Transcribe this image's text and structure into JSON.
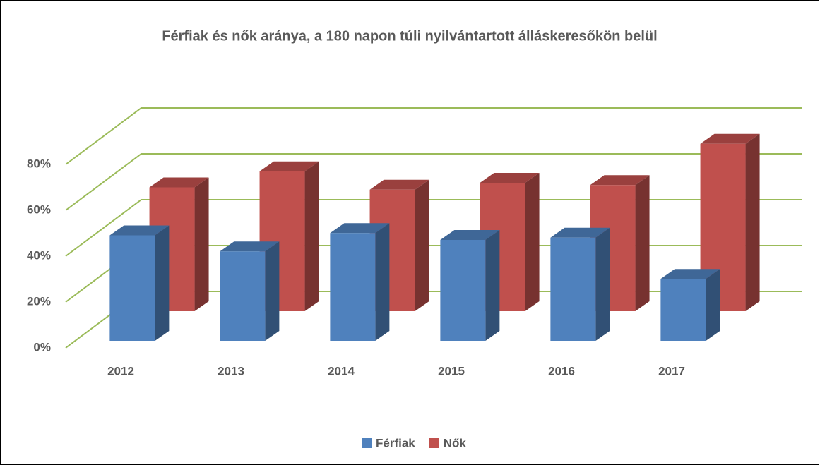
{
  "chart_data": {
    "type": "bar3d",
    "title": "Férfiak és nők aránya, a 180 napon túli nyilvántartott álláskeresőkön belül",
    "categories": [
      "2012",
      "2013",
      "2014",
      "2015",
      "2016",
      "2017"
    ],
    "series": [
      {
        "name": "Férfiak",
        "color": "#4f81bd",
        "values": [
          46,
          39,
          47,
          44,
          45,
          27
        ]
      },
      {
        "name": "Nők",
        "color": "#c0504d",
        "values": [
          54,
          61,
          53,
          56,
          55,
          73
        ]
      }
    ],
    "ylim": [
      0,
      80
    ],
    "yticks": [
      {
        "value": 0,
        "label": "0%"
      },
      {
        "value": 20,
        "label": "20%"
      },
      {
        "value": 40,
        "label": "40%"
      },
      {
        "value": 60,
        "label": "60%"
      },
      {
        "value": 80,
        "label": "80%"
      }
    ],
    "grid": true,
    "gridColor": "#9bbb59",
    "legend": "bottom"
  }
}
